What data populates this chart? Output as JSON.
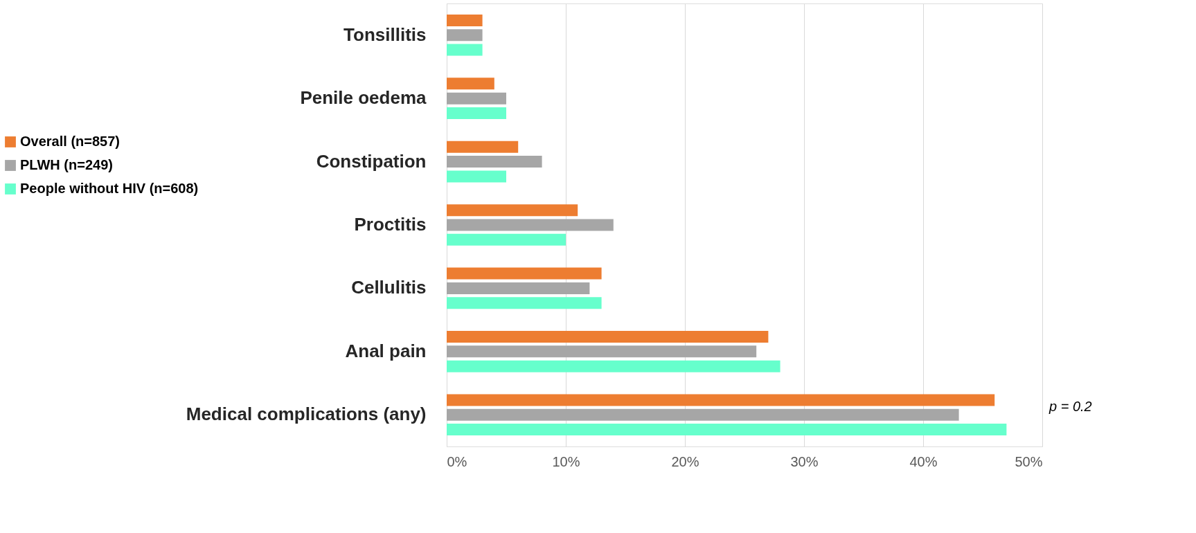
{
  "chart_data": {
    "type": "bar",
    "orientation": "horizontal",
    "categories": [
      "Tonsillitis",
      "Penile oedema",
      "Constipation",
      "Proctitis",
      "Cellulitis",
      "Anal pain",
      "Medical complications (any)"
    ],
    "series": [
      {
        "name": "Overall (n=857)",
        "color": "#ed7d31",
        "values": [
          3,
          4,
          6,
          11,
          13,
          27,
          46
        ]
      },
      {
        "name": "PLWH (n=249)",
        "color": "#a6a6a6",
        "values": [
          3,
          5,
          8,
          14,
          12,
          26,
          43
        ]
      },
      {
        "name": "People without HIV (n=608)",
        "color": "#66ffcc",
        "values": [
          3,
          5,
          5,
          10,
          13,
          28,
          47
        ]
      }
    ],
    "xlim": [
      0,
      50
    ],
    "xticks": [
      {
        "value": 0,
        "label": "0%"
      },
      {
        "value": 10,
        "label": "10%"
      },
      {
        "value": 20,
        "label": "20%"
      },
      {
        "value": 30,
        "label": "30%"
      },
      {
        "value": 40,
        "label": "40%"
      },
      {
        "value": 50,
        "label": "50%"
      }
    ],
    "grid": "x",
    "legend": "left",
    "annotations": [
      "p = 0.2"
    ]
  }
}
